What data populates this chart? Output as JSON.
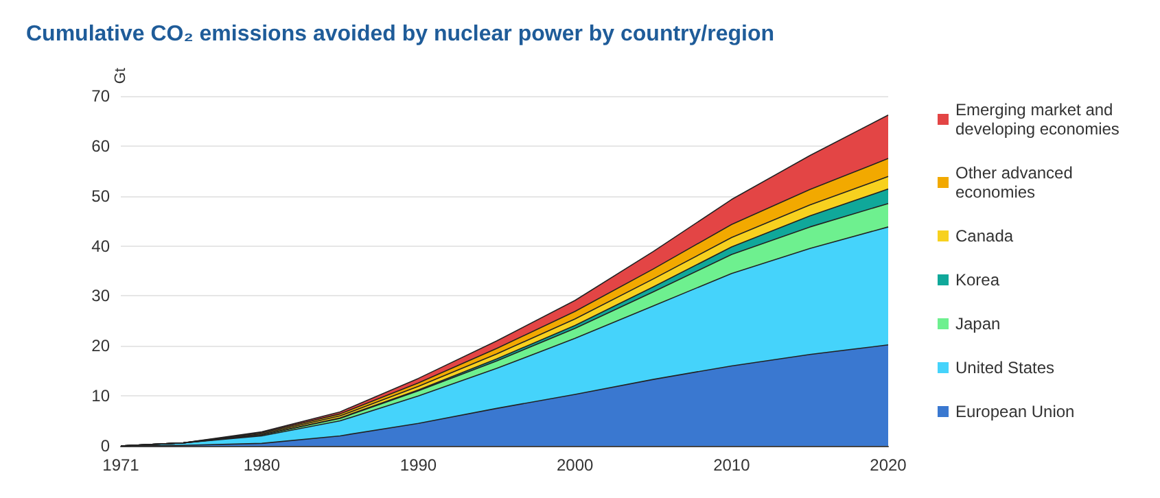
{
  "chart_data": {
    "type": "area",
    "title": "Cumulative CO₂ emissions avoided by nuclear power by country/region",
    "ylabel": "Gt",
    "stacked": true,
    "x": [
      1971,
      1975,
      1980,
      1985,
      1990,
      1995,
      2000,
      2005,
      2010,
      2015,
      2020
    ],
    "xlim": [
      1971,
      2020
    ],
    "xticks": [
      1971,
      1980,
      1990,
      2000,
      2010,
      2020
    ],
    "ylim": [
      0,
      70
    ],
    "yticks": [
      0,
      10,
      20,
      30,
      40,
      50,
      60,
      70
    ],
    "grid": "y",
    "legend": "right",
    "marker": "none",
    "line_style": "solid",
    "series": [
      {
        "name": "European Union",
        "color": "#3a78d0",
        "values": [
          0,
          0.1,
          0.5,
          2,
          4.5,
          7.5,
          10.3,
          13.3,
          16,
          18.3,
          20.2
        ]
      },
      {
        "name": "United States",
        "color": "#45d3fb",
        "values": [
          0,
          0.5,
          1.5,
          3,
          5.5,
          8,
          11.2,
          14.7,
          18.5,
          21.2,
          23.6
        ]
      },
      {
        "name": "Japan",
        "color": "#6ef08f",
        "values": [
          0,
          0,
          0.2,
          0.5,
          1,
          1.5,
          2,
          2.8,
          3.8,
          4.3,
          4.7
        ]
      },
      {
        "name": "Korea",
        "color": "#10a89a",
        "values": [
          0,
          0,
          0,
          0.1,
          0.2,
          0.4,
          0.6,
          1,
          1.5,
          2.2,
          2.9
        ]
      },
      {
        "name": "Canada",
        "color": "#f7d11f",
        "values": [
          0,
          0,
          0.2,
          0.4,
          0.7,
          1,
          1.3,
          1.6,
          1.9,
          2.2,
          2.5
        ]
      },
      {
        "name": "Other advanced economies",
        "color": "#f2a900",
        "values": [
          0,
          0,
          0.2,
          0.4,
          0.7,
          1.1,
          1.5,
          2,
          2.6,
          3.1,
          3.6
        ]
      },
      {
        "name": "Emerging market and developing economies",
        "color": "#e34545",
        "values": [
          0,
          0,
          0.2,
          0.4,
          0.9,
          1.5,
          2.2,
          3.5,
          5,
          6.8,
          8.7
        ]
      }
    ]
  }
}
